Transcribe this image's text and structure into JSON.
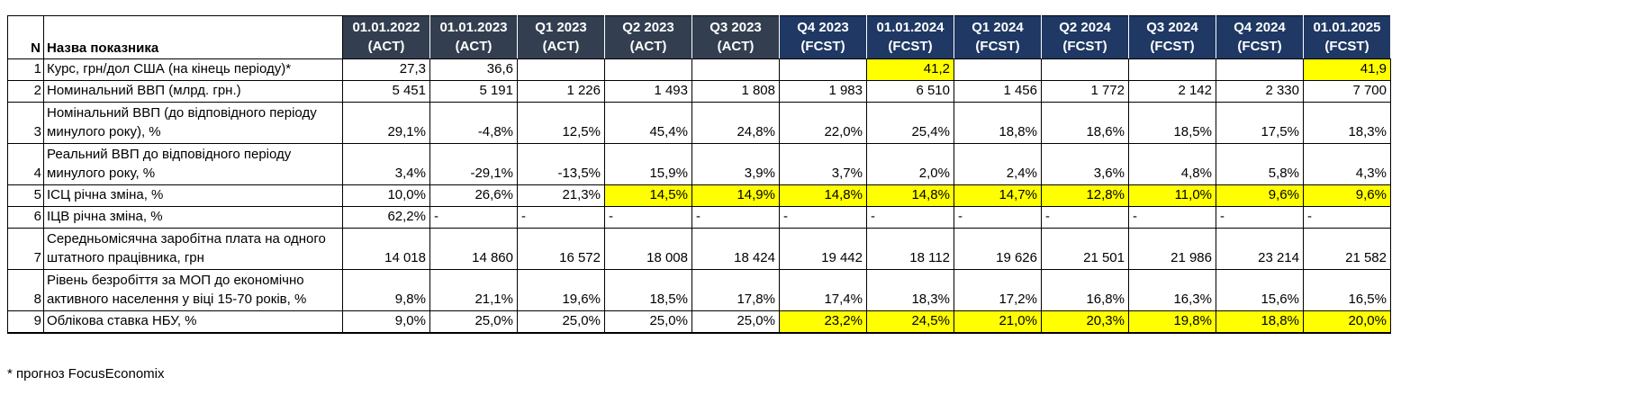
{
  "table": {
    "n_header": "N",
    "name_header": "Назва показника",
    "periods": [
      {
        "date": "01.01.2022",
        "kind": "(ACT)",
        "group": "act"
      },
      {
        "date": "01.01.2023",
        "kind": "(ACT)",
        "group": "act"
      },
      {
        "date": "Q1 2023",
        "kind": "(ACT)",
        "group": "act"
      },
      {
        "date": "Q2 2023",
        "kind": "(ACT)",
        "group": "act"
      },
      {
        "date": "Q3 2023",
        "kind": "(ACT)",
        "group": "act"
      },
      {
        "date": "Q4 2023",
        "kind": "(FCST)",
        "group": "fcst"
      },
      {
        "date": "01.01.2024",
        "kind": "(FCST)",
        "group": "fcst"
      },
      {
        "date": "Q1 2024",
        "kind": "(FCST)",
        "group": "fcst"
      },
      {
        "date": "Q2 2024",
        "kind": "(FCST)",
        "group": "fcst"
      },
      {
        "date": "Q3 2024",
        "kind": "(FCST)",
        "group": "fcst"
      },
      {
        "date": "Q4 2024",
        "kind": "(FCST)",
        "group": "fcst"
      },
      {
        "date": "01.01.2025",
        "kind": "(FCST)",
        "group": "fcst"
      }
    ],
    "rows": [
      {
        "n": "1",
        "label": "Курс, грн/дол США (на кінець періоду)*",
        "tall": false,
        "cells": [
          {
            "v": "27,3"
          },
          {
            "v": "36,6"
          },
          {
            "v": ""
          },
          {
            "v": ""
          },
          {
            "v": ""
          },
          {
            "v": ""
          },
          {
            "v": "41,2",
            "hl": true
          },
          {
            "v": ""
          },
          {
            "v": ""
          },
          {
            "v": ""
          },
          {
            "v": ""
          },
          {
            "v": "41,9",
            "hl": true
          }
        ]
      },
      {
        "n": "2",
        "label": "Номинальний ВВП (млрд. грн.)",
        "tall": false,
        "cells": [
          {
            "v": "5 451"
          },
          {
            "v": "5 191"
          },
          {
            "v": "1 226"
          },
          {
            "v": "1 493"
          },
          {
            "v": "1 808"
          },
          {
            "v": "1 983"
          },
          {
            "v": "6 510"
          },
          {
            "v": "1 456"
          },
          {
            "v": "1 772"
          },
          {
            "v": "2 142"
          },
          {
            "v": "2 330"
          },
          {
            "v": "7 700"
          }
        ]
      },
      {
        "n": "3",
        "label": "Номінальний ВВП (до відповідного періоду минулого року), %",
        "tall": true,
        "cells": [
          {
            "v": "29,1%"
          },
          {
            "v": "-4,8%"
          },
          {
            "v": "12,5%"
          },
          {
            "v": "45,4%"
          },
          {
            "v": "24,8%"
          },
          {
            "v": "22,0%"
          },
          {
            "v": "25,4%"
          },
          {
            "v": "18,8%"
          },
          {
            "v": "18,6%"
          },
          {
            "v": "18,5%"
          },
          {
            "v": "17,5%"
          },
          {
            "v": "18,3%"
          }
        ]
      },
      {
        "n": "4",
        "label": "Реальний ВВП до відповідного періоду минулого року, %",
        "tall": true,
        "cells": [
          {
            "v": "3,4%"
          },
          {
            "v": "-29,1%"
          },
          {
            "v": "-13,5%"
          },
          {
            "v": "15,9%"
          },
          {
            "v": "3,9%"
          },
          {
            "v": "3,7%"
          },
          {
            "v": "2,0%"
          },
          {
            "v": "2,4%"
          },
          {
            "v": "3,6%"
          },
          {
            "v": "4,8%"
          },
          {
            "v": "5,8%"
          },
          {
            "v": "4,3%"
          }
        ]
      },
      {
        "n": "5",
        "label": "ІСЦ річна зміна, %",
        "tall": false,
        "cells": [
          {
            "v": "10,0%"
          },
          {
            "v": "26,6%"
          },
          {
            "v": "21,3%"
          },
          {
            "v": "14,5%",
            "hl": true
          },
          {
            "v": "14,9%",
            "hl": true
          },
          {
            "v": "14,8%",
            "hl": true
          },
          {
            "v": "14,8%",
            "hl": true
          },
          {
            "v": "14,7%",
            "hl": true
          },
          {
            "v": "12,8%",
            "hl": true
          },
          {
            "v": "11,0%",
            "hl": true
          },
          {
            "v": "9,6%",
            "hl": true
          },
          {
            "v": "9,6%",
            "hl": true
          }
        ]
      },
      {
        "n": "6",
        "label": "ІЦВ річна зміна, %",
        "tall": false,
        "cells": [
          {
            "v": "62,2%"
          },
          {
            "v": "-",
            "left": true
          },
          {
            "v": "-",
            "left": true
          },
          {
            "v": "-",
            "left": true
          },
          {
            "v": "-",
            "left": true
          },
          {
            "v": "-",
            "left": true
          },
          {
            "v": "-",
            "left": true
          },
          {
            "v": "-",
            "left": true
          },
          {
            "v": "-",
            "left": true
          },
          {
            "v": "-",
            "left": true
          },
          {
            "v": "-",
            "left": true
          },
          {
            "v": "-",
            "left": true
          }
        ]
      },
      {
        "n": "7",
        "label": "Середньомісячна заробітна плата на одного штатного працівника, грн",
        "tall": true,
        "cells": [
          {
            "v": "14 018"
          },
          {
            "v": "14 860"
          },
          {
            "v": "16 572"
          },
          {
            "v": "18 008"
          },
          {
            "v": "18 424"
          },
          {
            "v": "19 442"
          },
          {
            "v": "18 112"
          },
          {
            "v": "19 626"
          },
          {
            "v": "21 501"
          },
          {
            "v": "21 986"
          },
          {
            "v": "23 214"
          },
          {
            "v": "21 582"
          }
        ]
      },
      {
        "n": "8",
        "label": "Рівень безробіття за МОП до економічно активного населення у віці 15-70 років, %",
        "tall": true,
        "cells": [
          {
            "v": "9,8%"
          },
          {
            "v": "21,1%"
          },
          {
            "v": "19,6%"
          },
          {
            "v": "18,5%"
          },
          {
            "v": "17,8%"
          },
          {
            "v": "17,4%"
          },
          {
            "v": "18,3%"
          },
          {
            "v": "17,2%"
          },
          {
            "v": "16,8%"
          },
          {
            "v": "16,3%"
          },
          {
            "v": "15,6%"
          },
          {
            "v": "16,5%"
          }
        ]
      },
      {
        "n": "9",
        "label": "Облікова ставка НБУ, %",
        "tall": false,
        "cells": [
          {
            "v": "9,0%"
          },
          {
            "v": "25,0%"
          },
          {
            "v": "25,0%"
          },
          {
            "v": "25,0%"
          },
          {
            "v": "25,0%"
          },
          {
            "v": "23,2%",
            "hl": true
          },
          {
            "v": "24,5%",
            "hl": true
          },
          {
            "v": "21,0%",
            "hl": true
          },
          {
            "v": "20,3%",
            "hl": true
          },
          {
            "v": "19,8%",
            "hl": true
          },
          {
            "v": "18,8%",
            "hl": true
          },
          {
            "v": "20,0%",
            "hl": true
          }
        ]
      }
    ]
  },
  "footnote": "* прогноз FocusEconomix",
  "colors": {
    "act_header_bg": "#333F50",
    "fcst_header_bg": "#1F3864",
    "header_text": "#FFFFFF",
    "highlight": "#FFFF00"
  }
}
